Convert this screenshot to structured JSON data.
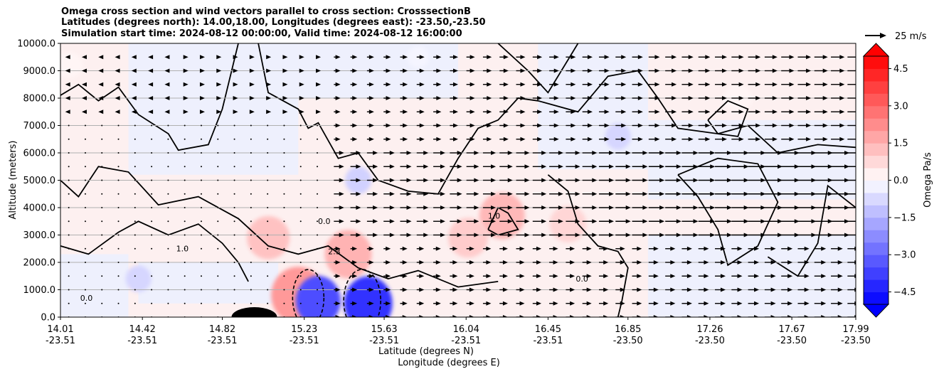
{
  "chart_data": {
    "type": "heatmap",
    "title_lines": [
      "Omega cross section and wind vectors parallel to cross section: CrosssectionB",
      "Latitudes (degrees north): 14.00,18.00, Longitudes (degrees east): -23.50,-23.50",
      "Simulation start time: 2024-08-12 00:00:00, Valid time: 2024-08-12 16:00:00"
    ],
    "ylabel": "Altitude (meters)",
    "xlabel_1": "Latitude (degrees N)",
    "xlabel_2": "Longitude (degrees E)",
    "ylim": [
      0,
      10000
    ],
    "y_ticks": [
      "0.0",
      "1000.0",
      "2000.0",
      "3000.0",
      "4000.0",
      "5000.0",
      "6000.0",
      "7000.0",
      "8000.0",
      "9000.0",
      "10000.0"
    ],
    "x_ticks": [
      {
        "lat": "14.01",
        "lon": "-23.51"
      },
      {
        "lat": "14.42",
        "lon": "-23.51"
      },
      {
        "lat": "14.82",
        "lon": "-23.51"
      },
      {
        "lat": "15.23",
        "lon": "-23.51"
      },
      {
        "lat": "15.63",
        "lon": "-23.51"
      },
      {
        "lat": "16.04",
        "lon": "-23.51"
      },
      {
        "lat": "16.45",
        "lon": "-23.51"
      },
      {
        "lat": "16.85",
        "lon": "-23.50"
      },
      {
        "lat": "17.26",
        "lon": "-23.50"
      },
      {
        "lat": "17.67",
        "lon": "-23.50"
      },
      {
        "lat": "17.99",
        "lon": "-23.50"
      }
    ],
    "grid": "horizontal",
    "colorbar": {
      "label": "Omega Pa/s",
      "min": -5.0,
      "max": 5.0,
      "tick_labels": [
        "4.5",
        "3.0",
        "1.5",
        "0.0",
        "−1.5",
        "−3.0",
        "−4.5"
      ],
      "low_color": "#0000ff",
      "high_color": "#ff0000",
      "zero_color": "#ffffff"
    },
    "quiver_key": "25 m/s",
    "contour_labels": [
      "0.0",
      "1.0",
      "2.3",
      "0.0",
      "1.0",
      "0.0"
    ],
    "positive_regions": [
      {
        "lat": 14.05,
        "alt": 9200,
        "omega": 0.2
      },
      {
        "lat": 15.05,
        "alt": 2900,
        "omega": 1.2
      },
      {
        "lat": 15.2,
        "alt": 800,
        "omega": 2.0
      },
      {
        "lat": 15.45,
        "alt": 2300,
        "omega": 1.5
      },
      {
        "lat": 16.22,
        "alt": 3700,
        "omega": 1.4
      },
      {
        "lat": 16.55,
        "alt": 3400,
        "omega": 0.8
      },
      {
        "lat": 16.05,
        "alt": 2900,
        "omega": 1.0
      },
      {
        "lat": 17.4,
        "alt": 8000,
        "omega": 0.2
      }
    ],
    "negative_regions": [
      {
        "lat": 14.4,
        "alt": 1400,
        "omega": -0.8
      },
      {
        "lat": 15.3,
        "alt": 600,
        "omega": -3.5
      },
      {
        "lat": 15.55,
        "alt": 500,
        "omega": -4.0
      },
      {
        "lat": 15.5,
        "alt": 5000,
        "omega": -0.9
      },
      {
        "lat": 16.8,
        "alt": 6600,
        "omega": -0.8
      },
      {
        "lat": 15.8,
        "alt": 9500,
        "omega": -0.2
      }
    ]
  },
  "colors": {
    "pos_tint": "#fdf0f0",
    "neg_tint": "#eef0fd",
    "grid": "#b0b0b0"
  }
}
